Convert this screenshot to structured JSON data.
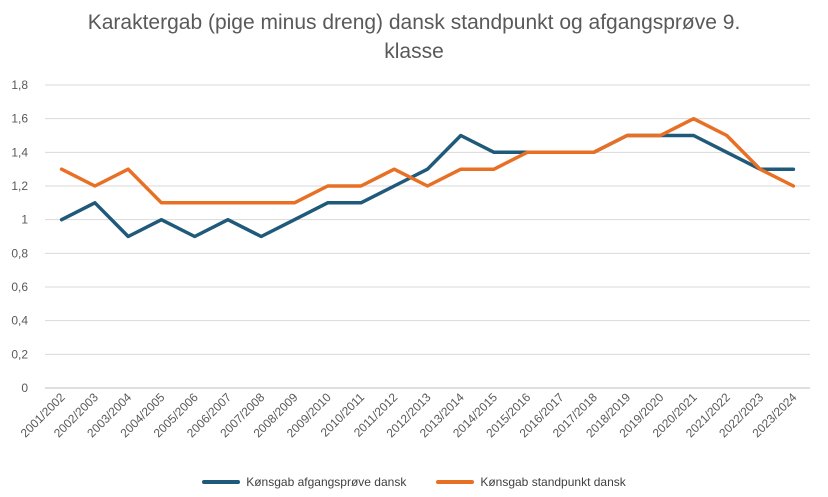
{
  "chart_data": {
    "type": "line",
    "title_lines": [
      "Karaktergab (pige minus dreng) dansk standpunkt og afgangsprøve 9.",
      "klasse"
    ],
    "xlabel": "",
    "ylabel": "",
    "ylim": [
      0,
      1.8
    ],
    "yticks": [
      "0",
      "0,2",
      "0,4",
      "0,6",
      "0,8",
      "1",
      "1,2",
      "1,4",
      "1,6",
      "1,8"
    ],
    "grid": true,
    "legend_position": "bottom",
    "categories": [
      "2001/2002",
      "2002/2003",
      "2003/2004",
      "2004/2005",
      "2005/2006",
      "2006/2007",
      "2007/2008",
      "2008/2009",
      "2009/2010",
      "2010/2011",
      "2011/2012",
      "2012/2013",
      "2013/2014",
      "2014/2015",
      "2015/2016",
      "2016/2017",
      "2017/2018",
      "2018/2019",
      "2019/2020",
      "2020/2021",
      "2021/2022",
      "2022/2023",
      "2023/2024"
    ],
    "series": [
      {
        "name": "Kønsgab afgangsprøve dansk",
        "color": "#1f5a7a",
        "values": [
          1.0,
          1.1,
          0.9,
          1.0,
          0.9,
          1.0,
          0.9,
          1.0,
          1.1,
          1.1,
          1.2,
          1.3,
          1.5,
          1.4,
          1.4,
          1.4,
          1.4,
          1.5,
          1.5,
          1.5,
          1.4,
          1.3,
          1.3
        ]
      },
      {
        "name": "Kønsgab standpunkt dansk",
        "color": "#e87025",
        "values": [
          1.3,
          1.2,
          1.3,
          1.1,
          1.1,
          1.1,
          1.1,
          1.1,
          1.2,
          1.2,
          1.3,
          1.2,
          1.3,
          1.3,
          1.4,
          1.4,
          1.4,
          1.5,
          1.5,
          1.6,
          1.5,
          1.3,
          1.2
        ]
      }
    ]
  }
}
